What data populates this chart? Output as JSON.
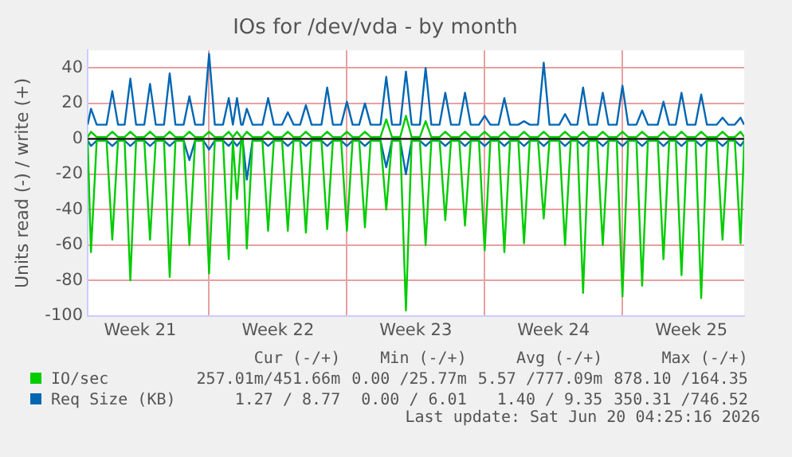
{
  "chart_data": {
    "type": "line",
    "title": "IOs for /dev/vda - by month",
    "ylabel": "Units read (-) / write (+)",
    "x": [
      "2026-05-17T20:00",
      "2026-05-18T00:00",
      "2026-05-18T07:00",
      "2026-05-18T19:00",
      "2026-05-19T02:00",
      "2026-05-19T09:00",
      "2026-05-19T17:00",
      "2026-05-20T00:00",
      "2026-05-20T07:00",
      "2026-05-20T17:00",
      "2026-05-21T00:00",
      "2026-05-21T07:00",
      "2026-05-21T17:00",
      "2026-05-22T00:00",
      "2026-05-22T07:00",
      "2026-05-22T17:00",
      "2026-05-23T00:00",
      "2026-05-23T07:00",
      "2026-05-23T17:00",
      "2026-05-24T00:00",
      "2026-05-24T07:00",
      "2026-05-24T17:00",
      "2026-05-25T00:00",
      "2026-05-25T05:00",
      "2026-05-25T06:00",
      "2026-05-25T10:00",
      "2026-05-25T15:00",
      "2026-05-25T17:00",
      "2026-05-25T22:00",
      "2026-05-26T05:00",
      "2026-05-26T17:00",
      "2026-05-27T00:00",
      "2026-05-27T07:00",
      "2026-05-27T17:00",
      "2026-05-28T00:00",
      "2026-05-28T07:00",
      "2026-05-28T15:00",
      "2026-05-28T22:00",
      "2026-05-29T05:00",
      "2026-05-29T17:00",
      "2026-05-30T00:00",
      "2026-05-30T07:00",
      "2026-05-30T17:00",
      "2026-05-31T00:00",
      "2026-05-31T07:00",
      "2026-05-31T15:00",
      "2026-05-31T22:00",
      "2026-06-01T05:00",
      "2026-06-01T17:00",
      "2026-06-02T00:00",
      "2026-06-02T07:00",
      "2026-06-02T17:00",
      "2026-06-03T00:00",
      "2026-06-03T07:00",
      "2026-06-03T17:00",
      "2026-06-04T00:00",
      "2026-06-04T07:00",
      "2026-06-04T17:00",
      "2026-06-05T00:00",
      "2026-06-05T07:00",
      "2026-06-05T17:00",
      "2026-06-06T00:00",
      "2026-06-06T07:00",
      "2026-06-06T17:00",
      "2026-06-07T00:00",
      "2026-06-07T07:00",
      "2026-06-07T17:00",
      "2026-06-08T00:00",
      "2026-06-08T07:00",
      "2026-06-08T17:00",
      "2026-06-09T00:00",
      "2026-06-09T07:00",
      "2026-06-09T17:00",
      "2026-06-10T00:00",
      "2026-06-10T07:00",
      "2026-06-10T19:00",
      "2026-06-11T02:00",
      "2026-06-11T09:00",
      "2026-06-11T17:00",
      "2026-06-12T00:00",
      "2026-06-12T07:00",
      "2026-06-12T17:00",
      "2026-06-13T00:00",
      "2026-06-13T07:00",
      "2026-06-13T17:00",
      "2026-06-14T00:00",
      "2026-06-14T07:00",
      "2026-06-14T17:00",
      "2026-06-15T00:00",
      "2026-06-15T07:00",
      "2026-06-15T19:00",
      "2026-06-16T02:00",
      "2026-06-16T09:00",
      "2026-06-16T17:00",
      "2026-06-17T00:00",
      "2026-06-17T07:00",
      "2026-06-17T17:00",
      "2026-06-18T00:00",
      "2026-06-18T07:00",
      "2026-06-18T19:00",
      "2026-06-19T02:00",
      "2026-06-19T09:00",
      "2026-06-19T17:00",
      "2026-06-20T00:00",
      "2026-06-20T04:25"
    ],
    "series": [
      {
        "name": "IO/sec",
        "color": "#00cc00",
        "values": [
          -1,
          -64,
          -1,
          -1,
          -57,
          -1,
          -1,
          -80,
          -1,
          -1,
          -57,
          -1,
          -1,
          -78,
          -1,
          -1,
          -60,
          -1,
          -1,
          -76,
          -1,
          -1,
          -68,
          -1,
          -1,
          -34,
          -1,
          -1,
          -62,
          -1,
          -1,
          -52,
          -1,
          -1,
          -52,
          -1,
          -1,
          -53,
          -1,
          -1,
          -51,
          -1,
          -1,
          -52,
          -1,
          -1,
          -50,
          -1,
          -1,
          -40,
          -1,
          -1,
          -97,
          -1,
          -1,
          -60,
          -1,
          -1,
          -46,
          -1,
          -1,
          -49,
          -1,
          -1,
          -63,
          -1,
          -1,
          -64,
          -1,
          -1,
          -59,
          -1,
          -1,
          -45,
          -1,
          -1,
          -60,
          -1,
          -1,
          -87,
          -1,
          -1,
          -60,
          -1,
          -1,
          -89,
          -1,
          -1,
          -83,
          -1,
          -1,
          -68,
          -1,
          -1,
          -77,
          -1,
          -1,
          -90,
          -1,
          -1,
          -57,
          -1,
          -1,
          -59,
          -1
        ]
      },
      {
        "color": "#00cc00",
        "values": [
          1,
          4,
          1,
          1,
          4,
          1,
          1,
          4,
          1,
          1,
          4,
          1,
          1,
          4,
          1,
          1,
          4,
          1,
          1,
          4,
          1,
          1,
          4,
          1,
          1,
          4,
          1,
          1,
          4,
          1,
          1,
          4,
          1,
          1,
          4,
          1,
          1,
          4,
          1,
          1,
          4,
          1,
          1,
          4,
          1,
          1,
          4,
          1,
          1,
          11,
          1,
          1,
          13,
          1,
          1,
          10,
          1,
          1,
          4,
          1,
          1,
          4,
          1,
          1,
          4,
          1,
          1,
          4,
          1,
          1,
          4,
          1,
          1,
          4,
          1,
          1,
          4,
          1,
          1,
          4,
          1,
          1,
          4,
          1,
          1,
          4,
          1,
          1,
          4,
          1,
          1,
          4,
          1,
          1,
          4,
          1,
          1,
          4,
          1,
          1,
          4,
          1,
          1,
          4,
          1
        ]
      },
      {
        "name": "Req Size (KB)",
        "color": "#0066b3",
        "values": [
          8,
          17,
          8,
          8,
          27,
          8,
          8,
          34,
          8,
          8,
          31,
          8,
          8,
          37,
          8,
          8,
          24,
          8,
          8,
          48,
          8,
          8,
          23,
          8,
          8,
          23,
          8,
          8,
          17,
          8,
          8,
          23,
          8,
          8,
          15,
          8,
          8,
          19,
          8,
          8,
          29,
          8,
          8,
          21,
          8,
          8,
          20,
          8,
          8,
          35,
          8,
          8,
          38,
          8,
          8,
          40,
          8,
          8,
          26,
          8,
          8,
          26,
          8,
          8,
          13,
          8,
          8,
          23,
          8,
          8,
          10,
          8,
          8,
          43,
          8,
          8,
          14,
          8,
          8,
          29,
          8,
          8,
          26,
          8,
          8,
          30,
          8,
          8,
          16,
          8,
          8,
          21,
          8,
          8,
          26,
          8,
          8,
          25,
          8,
          8,
          12,
          8,
          8,
          12,
          8
        ]
      },
      {
        "color": "#0066b3",
        "values": [
          -1,
          -4,
          -1,
          -1,
          -4,
          -1,
          -1,
          -4,
          -1,
          -1,
          -4,
          -1,
          -1,
          -4,
          -1,
          -1,
          -12,
          -1,
          -1,
          -6,
          -1,
          -1,
          -4,
          -1,
          -1,
          -4,
          -1,
          -1,
          -23,
          -1,
          -1,
          -4,
          -1,
          -1,
          -4,
          -1,
          -1,
          -4,
          -1,
          -1,
          -4,
          -1,
          -1,
          -4,
          -1,
          -1,
          -4,
          -1,
          -1,
          -16,
          -1,
          -1,
          -20,
          -1,
          -1,
          -4,
          -1,
          -1,
          -4,
          -1,
          -1,
          -4,
          -1,
          -1,
          -4,
          -1,
          -1,
          -4,
          -1,
          -1,
          -4,
          -1,
          -1,
          -4,
          -1,
          -1,
          -4,
          -1,
          -1,
          -4,
          -1,
          -1,
          -4,
          -1,
          -1,
          -4,
          -1,
          -1,
          -4,
          -1,
          -1,
          -4,
          -1,
          -1,
          -4,
          -1,
          -1,
          -4,
          -1,
          -1,
          -4,
          -1,
          -1,
          -4,
          -1
        ]
      }
    ],
    "xlim": [
      "2026-05-17T20:00",
      "2026-06-20T04:25"
    ],
    "xticks": [
      {
        "value": "2026-05-20T12:00",
        "label": "Week 21"
      },
      {
        "value": "2026-05-24",
        "label": null
      },
      {
        "value": "2026-05-27T12:00",
        "label": "Week 22"
      },
      {
        "value": "2026-05-31",
        "label": null
      },
      {
        "value": "2026-06-03T12:00",
        "label": "Week 23"
      },
      {
        "value": "2026-06-07",
        "label": null
      },
      {
        "value": "2026-06-10T12:00",
        "label": "Week 24"
      },
      {
        "value": "2026-06-14",
        "label": null
      },
      {
        "value": "2026-06-17T12:00",
        "label": "Week 25"
      }
    ],
    "ylim": [
      -100,
      50
    ],
    "yticks": [
      -100,
      -80,
      -60,
      -40,
      -20,
      0,
      20,
      40
    ],
    "ref_lines": [
      {
        "axis": "y",
        "value": 0,
        "color": "#000000"
      }
    ],
    "grid": true,
    "legend": "bottom",
    "marker": "none",
    "line_style": "solid",
    "annotations": [
      "Cur (-/+)",
      "Min (-/+)",
      "Avg (-/+)",
      "Max (-/+)",
      "257.01m/451.66m",
      "0.00 /25.77m",
      "5.57 /777.09m",
      "878.10 /164.35",
      "1.27 / 8.77",
      "0.00 / 6.01",
      "1.40 / 9.35",
      "350.31 /746.52",
      "Last update: Sat Jun 20 04:25:16 2026"
    ]
  }
}
